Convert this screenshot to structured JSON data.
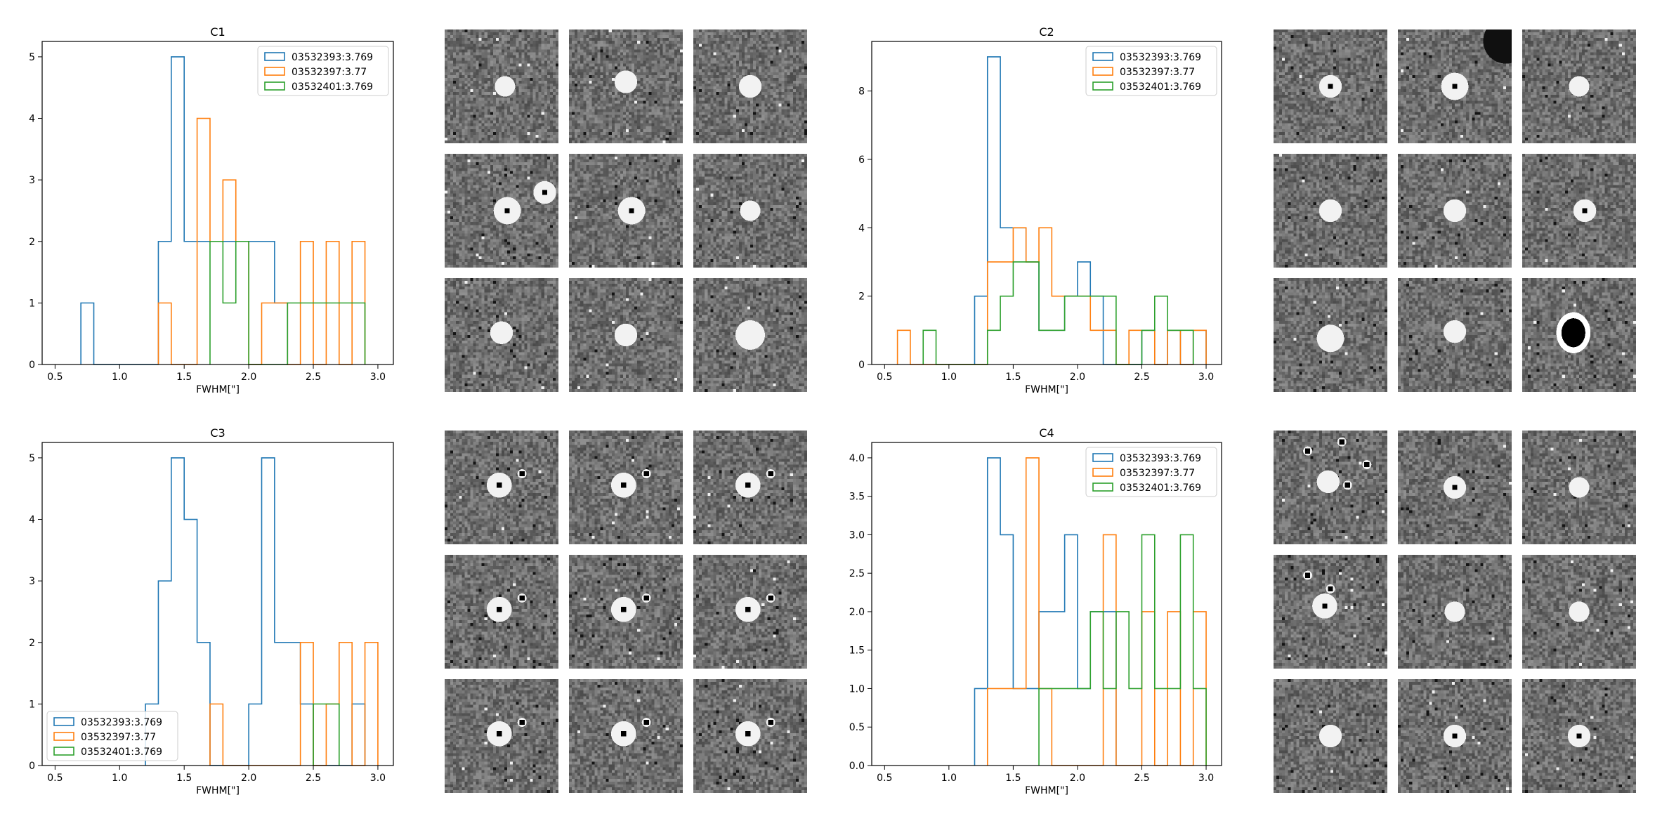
{
  "colors": {
    "blue": "#1f77b4",
    "orange": "#ff7f0e",
    "green": "#2ca02c"
  },
  "chart_data": [
    {
      "type": "histogram",
      "title": "C1",
      "xlabel": "FWHM[\"]",
      "ylabel": "",
      "xlim": [
        0.4,
        3.12
      ],
      "ylim": [
        0,
        5.25
      ],
      "xticks": [
        0.5,
        1.0,
        1.5,
        2.0,
        2.5,
        3.0
      ],
      "xtick_labels": [
        "0.5",
        "1.0",
        "1.5",
        "2.0",
        "2.5",
        "3.0"
      ],
      "yticks": [
        0,
        1,
        2,
        3,
        4,
        5
      ],
      "ytick_labels": [
        "0",
        "1",
        "2",
        "3",
        "4",
        "5"
      ],
      "legend_position": "top-right",
      "series": [
        {
          "name": "03532393:3.769",
          "color": "#1f77b4",
          "bins": [
            [
              0.7,
              0.8,
              1
            ],
            [
              0.8,
              1.3,
              0
            ],
            [
              1.3,
              1.4,
              2
            ],
            [
              1.4,
              1.5,
              5
            ],
            [
              1.5,
              2.2,
              2
            ],
            [
              2.2,
              2.3,
              1
            ]
          ]
        },
        {
          "name": "03532397:3.77",
          "color": "#ff7f0e",
          "bins": [
            [
              1.3,
              1.4,
              1
            ],
            [
              1.4,
              1.6,
              0
            ],
            [
              1.6,
              1.7,
              4
            ],
            [
              1.7,
              1.8,
              2
            ],
            [
              1.8,
              1.9,
              3
            ],
            [
              1.9,
              2.0,
              2
            ],
            [
              2.0,
              2.1,
              0
            ],
            [
              2.1,
              2.2,
              1
            ],
            [
              2.2,
              2.3,
              1
            ],
            [
              2.3,
              2.4,
              0
            ],
            [
              2.4,
              2.5,
              2
            ],
            [
              2.5,
              2.6,
              0
            ],
            [
              2.6,
              2.7,
              2
            ],
            [
              2.7,
              2.8,
              0
            ],
            [
              2.8,
              2.9,
              2
            ]
          ]
        },
        {
          "name": "03532401:3.769",
          "color": "#2ca02c",
          "bins": [
            [
              1.7,
              1.8,
              2
            ],
            [
              1.8,
              1.9,
              1
            ],
            [
              1.9,
              2.0,
              2
            ],
            [
              2.0,
              2.3,
              0
            ],
            [
              2.3,
              2.4,
              1
            ],
            [
              2.4,
              2.9,
              1
            ]
          ]
        }
      ]
    },
    {
      "type": "histogram",
      "title": "C2",
      "xlabel": "FWHM[\"]",
      "ylabel": "",
      "xlim": [
        0.4,
        3.12
      ],
      "ylim": [
        0,
        9.45
      ],
      "xticks": [
        0.5,
        1.0,
        1.5,
        2.0,
        2.5,
        3.0
      ],
      "xtick_labels": [
        "0.5",
        "1.0",
        "1.5",
        "2.0",
        "2.5",
        "3.0"
      ],
      "yticks": [
        0,
        2,
        4,
        6,
        8
      ],
      "ytick_labels": [
        "0",
        "2",
        "4",
        "6",
        "8"
      ],
      "legend_position": "top-right",
      "series": [
        {
          "name": "03532393:3.769",
          "color": "#1f77b4",
          "bins": [
            [
              1.2,
              1.3,
              2
            ],
            [
              1.3,
              1.4,
              9
            ],
            [
              1.4,
              1.5,
              4
            ],
            [
              1.5,
              1.6,
              4
            ],
            [
              1.6,
              1.7,
              3
            ],
            [
              1.7,
              1.8,
              1
            ],
            [
              1.8,
              1.9,
              1
            ],
            [
              1.9,
              2.0,
              2
            ],
            [
              2.0,
              2.1,
              3
            ],
            [
              2.1,
              2.2,
              2
            ],
            [
              2.2,
              2.5,
              0
            ],
            [
              2.5,
              2.6,
              1
            ],
            [
              2.6,
              2.7,
              0
            ],
            [
              2.7,
              2.8,
              1
            ],
            [
              2.8,
              2.9,
              0
            ],
            [
              2.9,
              3.0,
              1
            ]
          ]
        },
        {
          "name": "03532397:3.77",
          "color": "#ff7f0e",
          "bins": [
            [
              0.6,
              0.7,
              1
            ],
            [
              0.7,
              1.3,
              0
            ],
            [
              1.3,
              1.5,
              3
            ],
            [
              1.5,
              1.6,
              4
            ],
            [
              1.6,
              1.7,
              3
            ],
            [
              1.7,
              1.8,
              4
            ],
            [
              1.8,
              1.9,
              2
            ],
            [
              1.9,
              2.1,
              2
            ],
            [
              2.1,
              2.2,
              1
            ],
            [
              2.2,
              2.3,
              1
            ],
            [
              2.3,
              2.4,
              0
            ],
            [
              2.4,
              2.6,
              1
            ],
            [
              2.6,
              2.7,
              0
            ],
            [
              2.7,
              2.8,
              1
            ],
            [
              2.8,
              2.9,
              0
            ],
            [
              2.9,
              3.0,
              1
            ]
          ]
        },
        {
          "name": "03532401:3.769",
          "color": "#2ca02c",
          "bins": [
            [
              0.8,
              0.9,
              1
            ],
            [
              0.9,
              1.3,
              0
            ],
            [
              1.3,
              1.4,
              1
            ],
            [
              1.4,
              1.5,
              2
            ],
            [
              1.5,
              1.7,
              3
            ],
            [
              1.7,
              1.8,
              1
            ],
            [
              1.8,
              1.9,
              1
            ],
            [
              1.9,
              2.3,
              2
            ],
            [
              2.3,
              2.5,
              0
            ],
            [
              2.5,
              2.6,
              1
            ],
            [
              2.6,
              2.7,
              2
            ],
            [
              2.7,
              2.9,
              1
            ]
          ]
        }
      ]
    },
    {
      "type": "histogram",
      "title": "C3",
      "xlabel": "FWHM[\"]",
      "ylabel": "",
      "xlim": [
        0.4,
        3.12
      ],
      "ylim": [
        0,
        5.25
      ],
      "xticks": [
        0.5,
        1.0,
        1.5,
        2.0,
        2.5,
        3.0
      ],
      "xtick_labels": [
        "0.5",
        "1.0",
        "1.5",
        "2.0",
        "2.5",
        "3.0"
      ],
      "yticks": [
        0,
        1,
        2,
        3,
        4,
        5
      ],
      "ytick_labels": [
        "0",
        "1",
        "2",
        "3",
        "4",
        "5"
      ],
      "legend_position": "bottom-left",
      "series": [
        {
          "name": "03532393:3.769",
          "color": "#1f77b4",
          "bins": [
            [
              1.2,
              1.3,
              1
            ],
            [
              1.3,
              1.4,
              3
            ],
            [
              1.4,
              1.5,
              5
            ],
            [
              1.5,
              1.6,
              4
            ],
            [
              1.6,
              1.7,
              2
            ],
            [
              1.7,
              2.0,
              0
            ],
            [
              2.0,
              2.1,
              1
            ],
            [
              2.1,
              2.2,
              5
            ],
            [
              2.2,
              2.4,
              2
            ],
            [
              2.4,
              2.5,
              1
            ],
            [
              2.5,
              2.8,
              0
            ],
            [
              2.8,
              2.9,
              1
            ]
          ]
        },
        {
          "name": "03532397:3.77",
          "color": "#ff7f0e",
          "bins": [
            [
              1.7,
              1.8,
              1
            ],
            [
              1.8,
              2.4,
              0
            ],
            [
              2.4,
              2.5,
              2
            ],
            [
              2.5,
              2.6,
              0
            ],
            [
              2.6,
              2.7,
              1
            ],
            [
              2.7,
              2.8,
              2
            ],
            [
              2.8,
              2.9,
              0
            ],
            [
              2.9,
              3.0,
              2
            ]
          ]
        },
        {
          "name": "03532401:3.769",
          "color": "#2ca02c",
          "bins": [
            [
              2.5,
              2.6,
              1
            ],
            [
              2.6,
              2.7,
              1
            ]
          ]
        }
      ]
    },
    {
      "type": "histogram",
      "title": "C4",
      "xlabel": "FWHM[\"]",
      "ylabel": "",
      "xlim": [
        0.4,
        3.12
      ],
      "ylim": [
        0,
        4.2
      ],
      "xticks": [
        0.5,
        1.0,
        1.5,
        2.0,
        2.5,
        3.0
      ],
      "xtick_labels": [
        "0.5",
        "1.0",
        "1.5",
        "2.0",
        "2.5",
        "3.0"
      ],
      "yticks": [
        0,
        0.5,
        1.0,
        1.5,
        2.0,
        2.5,
        3.0,
        3.5,
        4.0
      ],
      "ytick_labels": [
        "0.0",
        "0.5",
        "1.0",
        "1.5",
        "2.0",
        "2.5",
        "3.0",
        "3.5",
        "4.0"
      ],
      "legend_position": "top-right",
      "series": [
        {
          "name": "03532393:3.769",
          "color": "#1f77b4",
          "bins": [
            [
              1.2,
              1.3,
              1
            ],
            [
              1.3,
              1.4,
              4
            ],
            [
              1.4,
              1.5,
              3
            ],
            [
              1.5,
              1.6,
              1
            ],
            [
              1.6,
              1.7,
              1
            ],
            [
              1.7,
              1.8,
              2
            ],
            [
              1.8,
              1.9,
              2
            ],
            [
              1.9,
              2.0,
              3
            ],
            [
              2.0,
              2.1,
              1
            ],
            [
              2.1,
              2.2,
              2
            ],
            [
              2.2,
              2.3,
              2
            ]
          ]
        },
        {
          "name": "03532397:3.77",
          "color": "#ff7f0e",
          "bins": [
            [
              1.3,
              1.6,
              1
            ],
            [
              1.6,
              1.7,
              4
            ],
            [
              1.7,
              1.8,
              1
            ],
            [
              1.8,
              2.2,
              0
            ],
            [
              2.2,
              2.3,
              3
            ],
            [
              2.3,
              2.5,
              0
            ],
            [
              2.5,
              2.6,
              2
            ],
            [
              2.6,
              2.7,
              0
            ],
            [
              2.7,
              2.8,
              2
            ],
            [
              2.8,
              2.9,
              0
            ],
            [
              2.9,
              3.0,
              2
            ]
          ]
        },
        {
          "name": "03532401:3.769",
          "color": "#2ca02c",
          "bins": [
            [
              1.7,
              2.1,
              1
            ],
            [
              2.1,
              2.2,
              2
            ],
            [
              2.2,
              2.3,
              1
            ],
            [
              2.3,
              2.4,
              2
            ],
            [
              2.4,
              2.5,
              1
            ],
            [
              2.5,
              2.6,
              3
            ],
            [
              2.6,
              2.7,
              1
            ],
            [
              2.7,
              2.8,
              1
            ],
            [
              2.8,
              2.9,
              3
            ],
            [
              2.9,
              3.0,
              1
            ]
          ]
        }
      ]
    }
  ]
}
